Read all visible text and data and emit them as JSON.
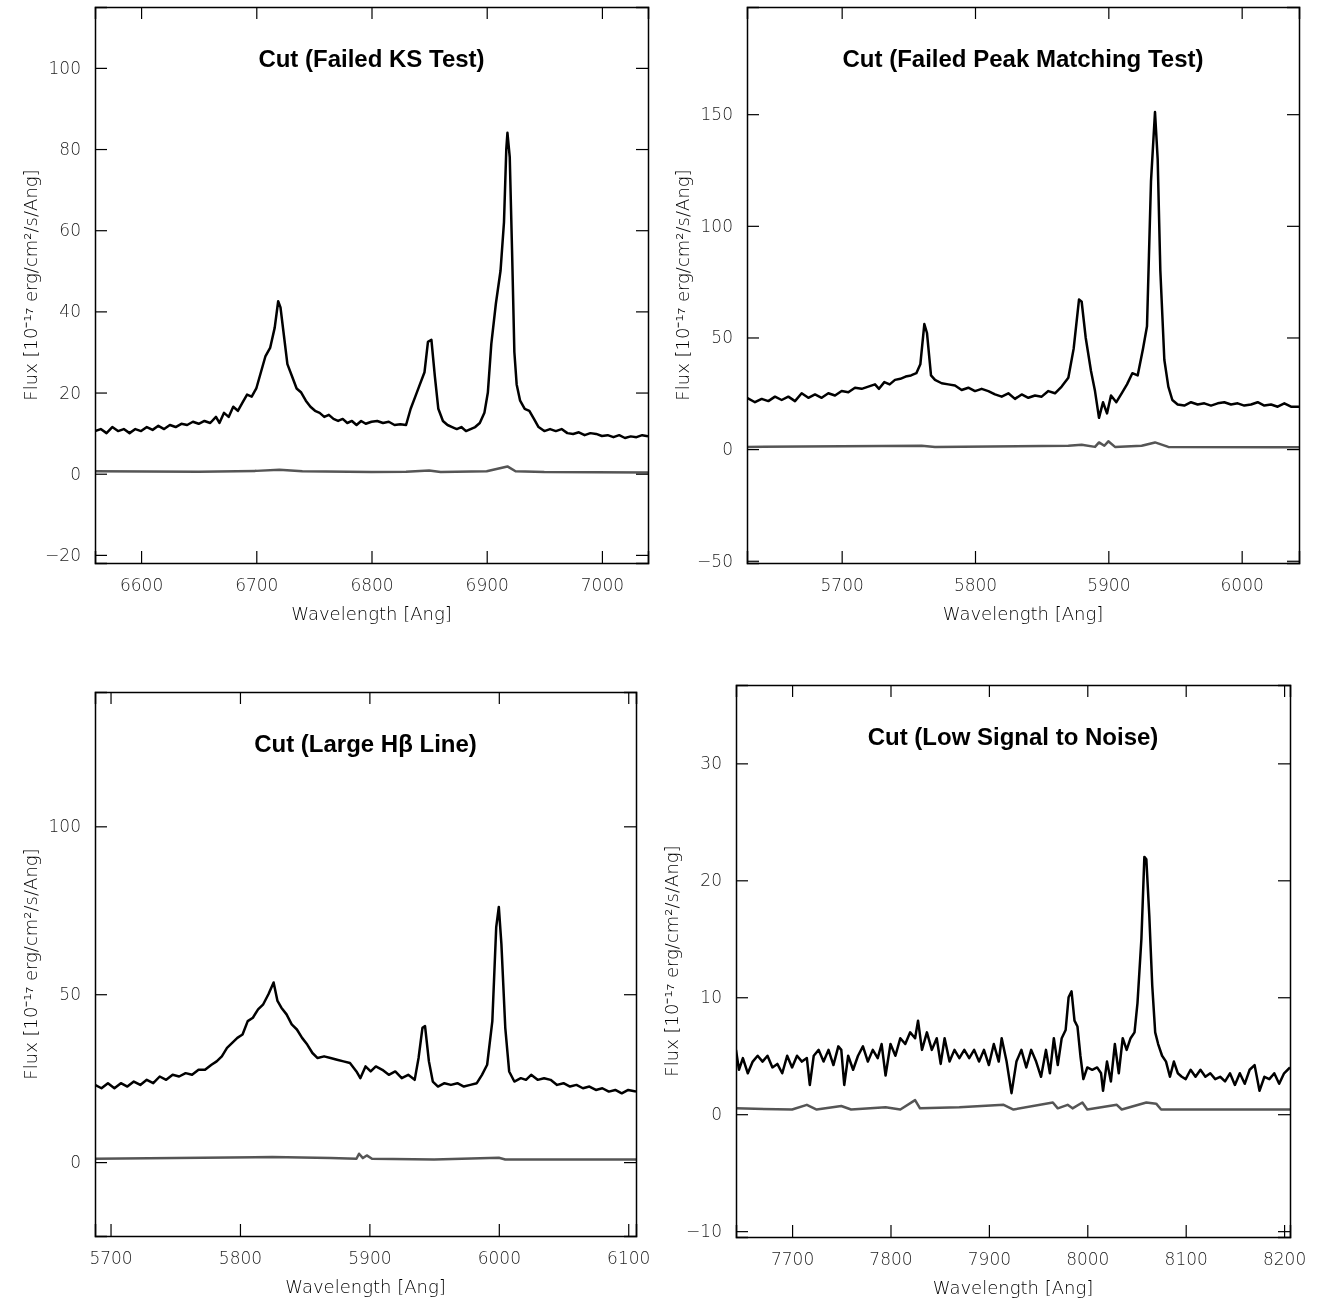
{
  "chart_data": [
    {
      "type": "line",
      "title": "Cut (Failed KS Test)",
      "xlabel": "Wavelength [Ang]",
      "ylabel": "Flux [10⁻¹⁷ erg/cm²/s/Ang]",
      "xlim": [
        6560,
        7040
      ],
      "ylim": [
        -22,
        115
      ],
      "xticks": [
        6600,
        6700,
        6800,
        6900,
        7000
      ],
      "yticks": [
        -20,
        0,
        20,
        40,
        60,
        80,
        100
      ],
      "line_style": "solid",
      "series": [
        {
          "color": "#000000",
          "x": [
            6560,
            6565,
            6570,
            6575,
            6580,
            6585,
            6590,
            6595,
            6600,
            6605,
            6610,
            6615,
            6620,
            6625,
            6630,
            6635,
            6640,
            6645,
            6650,
            6655,
            6660,
            6665,
            6668,
            6672,
            6676,
            6680,
            6684,
            6688,
            6692,
            6696,
            6700,
            6704,
            6708,
            6712,
            6716,
            6719,
            6721,
            6724,
            6727,
            6731,
            6735,
            6739,
            6743,
            6747,
            6751,
            6755,
            6759,
            6763,
            6767,
            6771,
            6775,
            6779,
            6783,
            6787,
            6791,
            6795,
            6800,
            6805,
            6810,
            6815,
            6820,
            6825,
            6830,
            6834,
            6838,
            6842,
            6846,
            6849,
            6852,
            6855,
            6858,
            6862,
            6866,
            6870,
            6874,
            6878,
            6882,
            6886,
            6890,
            6894,
            6898,
            6901,
            6904,
            6908,
            6912,
            6915,
            6917,
            6918,
            6920,
            6922,
            6924,
            6926,
            6929,
            6933,
            6937,
            6941,
            6945,
            6950,
            6955,
            6960,
            6965,
            6970,
            6975,
            6980,
            6985,
            6990,
            6995,
            7000,
            7005,
            7010,
            7015,
            7020,
            7025,
            7030,
            7035,
            7040
          ],
          "values": [
            10.5,
            11,
            10,
            11.5,
            10.5,
            11,
            10,
            11,
            10.5,
            11.5,
            10.8,
            11.8,
            11,
            12,
            11.5,
            12.3,
            12,
            12.8,
            12.3,
            13,
            12.5,
            14,
            12.5,
            15,
            14,
            16.5,
            15.5,
            17.5,
            19.5,
            19,
            21,
            25,
            29,
            31,
            36,
            42.5,
            41,
            34,
            27,
            24,
            21,
            20,
            18,
            16.5,
            15.5,
            15,
            14,
            14.5,
            13.5,
            13,
            13.5,
            12.5,
            13,
            12,
            13,
            12.3,
            12.8,
            13,
            12.5,
            12.8,
            12,
            12.2,
            12,
            16,
            19,
            22,
            25,
            32.5,
            33,
            24,
            16,
            13,
            12,
            11.5,
            11,
            11.5,
            10.5,
            11,
            11.5,
            12.5,
            15,
            20,
            32,
            42,
            50,
            62,
            80,
            84,
            78,
            55,
            30,
            22,
            18,
            16,
            15.5,
            13.5,
            11.5,
            10.5,
            11,
            10.5,
            11,
            10,
            9.8,
            10.2,
            9.5,
            10,
            9.8,
            9.3,
            9.5,
            9,
            9.5,
            8.8,
            9.2,
            9,
            9.5,
            9.2
          ]
        },
        {
          "color": "#555555",
          "x": [
            6560,
            6650,
            6700,
            6720,
            6740,
            6800,
            6830,
            6850,
            6860,
            6900,
            6918,
            6925,
            6950,
            7040
          ],
          "values": [
            0.6,
            0.5,
            0.7,
            1.0,
            0.6,
            0.4,
            0.5,
            0.8,
            0.4,
            0.6,
            1.8,
            0.6,
            0.4,
            0.3
          ]
        }
      ]
    },
    {
      "type": "line",
      "title": "Cut (Failed Peak Matching Test)",
      "xlabel": "Wavelength [Ang]",
      "ylabel": "Flux [10⁻¹⁷ erg/cm²/s/Ang]",
      "xlim": [
        5629,
        6043
      ],
      "ylim": [
        -51,
        198
      ],
      "xticks": [
        5700,
        5800,
        5900,
        6000
      ],
      "yticks": [
        -50,
        0,
        50,
        100,
        150
      ],
      "line_style": "solid",
      "series": [
        {
          "color": "#000000",
          "x": [
            5629,
            5635,
            5640,
            5645,
            5650,
            5655,
            5660,
            5665,
            5670,
            5675,
            5680,
            5685,
            5690,
            5695,
            5700,
            5705,
            5710,
            5715,
            5720,
            5725,
            5728,
            5732,
            5736,
            5740,
            5744,
            5748,
            5752,
            5756,
            5759,
            5762,
            5764,
            5767,
            5770,
            5775,
            5780,
            5785,
            5790,
            5795,
            5800,
            5805,
            5810,
            5815,
            5820,
            5825,
            5830,
            5835,
            5840,
            5845,
            5850,
            5855,
            5860,
            5865,
            5870,
            5874,
            5878,
            5880,
            5883,
            5887,
            5890,
            5893,
            5896,
            5899,
            5902,
            5906,
            5910,
            5914,
            5918,
            5922,
            5926,
            5929,
            5932,
            5935,
            5937,
            5939,
            5942,
            5945,
            5948,
            5952,
            5957,
            5962,
            5967,
            5972,
            5977,
            5982,
            5987,
            5992,
            5997,
            6002,
            6007,
            6012,
            6017,
            6022,
            6027,
            6032,
            6037,
            6043
          ],
          "values": [
            23,
            21,
            22.5,
            21.5,
            23.5,
            22,
            23.5,
            21.5,
            25,
            23,
            24.5,
            23,
            25,
            24,
            26,
            25.5,
            27.5,
            27,
            28,
            29,
            27,
            30,
            29,
            31,
            31.5,
            32.5,
            33,
            34,
            38,
            56,
            52,
            33,
            31,
            29.5,
            29,
            28.5,
            26.5,
            27.5,
            26,
            27,
            26,
            24.5,
            23.5,
            25,
            22.5,
            24.5,
            23,
            24,
            23.5,
            26,
            25,
            28,
            32,
            45,
            67,
            66,
            50,
            35,
            26,
            14,
            21,
            16,
            24,
            21,
            25,
            29,
            34,
            33,
            45,
            55,
            120,
            151,
            130,
            80,
            40,
            28,
            22,
            20,
            19.5,
            21,
            20,
            20.5,
            19.5,
            20.5,
            21,
            20,
            20.5,
            19.5,
            20,
            21,
            19.5,
            20,
            19,
            20.5,
            19,
            19
          ]
        },
        {
          "color": "#555555",
          "x": [
            5629,
            5760,
            5770,
            5870,
            5880,
            5890,
            5893,
            5897,
            5900,
            5905,
            5925,
            5935,
            5945,
            6043
          ],
          "values": [
            1,
            1.5,
            1,
            1.5,
            2,
            1,
            3,
            1.5,
            3.5,
            1,
            1.5,
            3,
            1,
            0.8
          ]
        }
      ]
    },
    {
      "type": "line",
      "title": "Cut (Large Hβ Line)",
      "xlabel": "Wavelength [Ang]",
      "ylabel": "Flux [10⁻¹⁷ erg/cm²/s/Ang]",
      "xlim": [
        5688,
        6106
      ],
      "ylim": [
        -22,
        140
      ],
      "xticks": [
        5700,
        5800,
        5900,
        6000,
        6100
      ],
      "yticks": [
        0,
        50,
        100
      ],
      "line_style": "solid",
      "series": [
        {
          "color": "#000000",
          "x": [
            5688,
            5693,
            5698,
            5703,
            5708,
            5713,
            5718,
            5723,
            5728,
            5733,
            5738,
            5743,
            5748,
            5753,
            5758,
            5763,
            5768,
            5773,
            5778,
            5782,
            5786,
            5790,
            5794,
            5798,
            5802,
            5806,
            5810,
            5814,
            5818,
            5822,
            5826,
            5829,
            5832,
            5836,
            5840,
            5844,
            5848,
            5852,
            5856,
            5860,
            5865,
            5870,
            5875,
            5880,
            5885,
            5890,
            5893,
            5897,
            5901,
            5905,
            5910,
            5915,
            5920,
            5925,
            5930,
            5935,
            5938,
            5941,
            5943,
            5946,
            5949,
            5953,
            5958,
            5963,
            5968,
            5973,
            5978,
            5983,
            5987,
            5991,
            5995,
            5998,
            6000,
            6002,
            6005,
            6008,
            6012,
            6017,
            6021,
            6025,
            6030,
            6035,
            6040,
            6045,
            6050,
            6055,
            6060,
            6065,
            6070,
            6075,
            6080,
            6085,
            6090,
            6095,
            6100,
            6106
          ],
          "values": [
            23,
            22,
            23.5,
            22,
            23.5,
            22.5,
            24,
            23,
            24.5,
            23.5,
            25.5,
            24.5,
            26,
            25.5,
            26.5,
            26,
            27.5,
            27.5,
            29,
            30,
            31.5,
            34,
            35.5,
            37,
            38,
            42,
            43,
            45.5,
            47,
            50,
            53.5,
            48,
            46,
            44,
            41,
            39.5,
            37,
            35,
            32.5,
            31,
            31.5,
            31,
            30.5,
            30,
            29.5,
            27,
            25,
            28.5,
            27,
            28.5,
            27.5,
            26,
            27,
            25,
            26,
            24.5,
            31,
            40,
            40.5,
            30,
            24,
            22.5,
            23.5,
            23,
            23.5,
            22.5,
            23,
            23.5,
            26,
            29,
            42,
            70,
            76,
            65,
            40,
            27,
            24,
            25,
            24.5,
            26,
            24.5,
            25,
            24.5,
            23,
            23.5,
            22.5,
            23,
            22,
            22.5,
            21.5,
            22,
            21,
            21.5,
            20.5,
            21.5,
            21
          ]
        },
        {
          "color": "#555555",
          "x": [
            5688,
            5825,
            5870,
            5890,
            5892,
            5895,
            5898,
            5902,
            5950,
            6000,
            6005,
            6106
          ],
          "values": [
            1,
            1.5,
            1.2,
            1,
            2.5,
            1.2,
            2,
            1,
            0.8,
            1.3,
            0.8,
            0.8
          ]
        }
      ]
    },
    {
      "type": "line",
      "title": "Cut (Low Signal to Noise)",
      "xlabel": "Wavelength [Ang]",
      "ylabel": "Flux [10⁻¹⁷ erg/cm²/s/Ang]",
      "xlim": [
        7643,
        8206
      ],
      "ylim": [
        -10.5,
        36.7
      ],
      "xticks": [
        7700,
        7800,
        7900,
        8000,
        8100,
        8200
      ],
      "yticks": [
        -10,
        0,
        10,
        20,
        30
      ],
      "line_style": "solid",
      "series": [
        {
          "color": "#000000",
          "x": [
            7643,
            7646,
            7650,
            7655,
            7660,
            7665,
            7670,
            7675,
            7680,
            7685,
            7690,
            7695,
            7700,
            7705,
            7710,
            7715,
            7718,
            7722,
            7727,
            7732,
            7737,
            7742,
            7747,
            7750,
            7753,
            7757,
            7762,
            7767,
            7772,
            7777,
            7782,
            7787,
            7791,
            7795,
            7800,
            7805,
            7810,
            7815,
            7820,
            7825,
            7828,
            7832,
            7837,
            7842,
            7847,
            7851,
            7855,
            7860,
            7865,
            7870,
            7875,
            7880,
            7885,
            7890,
            7895,
            7900,
            7905,
            7910,
            7913,
            7918,
            7923,
            7928,
            7933,
            7938,
            7943,
            7948,
            7953,
            7958,
            7962,
            7966,
            7970,
            7974,
            7978,
            7981,
            7984,
            7987,
            7990,
            7993,
            7996,
            8000,
            8005,
            8010,
            8014,
            8016,
            8020,
            8024,
            8028,
            8032,
            8036,
            8040,
            8044,
            8048,
            8051,
            8055,
            8058,
            8060,
            8063,
            8066,
            8069,
            8072,
            8076,
            8080,
            8084,
            8088,
            8092,
            8096,
            8100,
            8105,
            8110,
            8115,
            8120,
            8125,
            8130,
            8135,
            8140,
            8145,
            8150,
            8155,
            8160,
            8165,
            8170,
            8175,
            8180,
            8185,
            8190,
            8195,
            8200,
            8206
          ],
          "values": [
            5.5,
            3.8,
            4.8,
            3.5,
            4.5,
            5,
            4.5,
            5,
            4,
            4.3,
            3.5,
            5,
            4,
            5,
            4.5,
            4.8,
            2.5,
            5,
            5.5,
            4.5,
            5.5,
            4.2,
            5.8,
            5.5,
            2.5,
            5,
            3.8,
            5,
            5.8,
            4.5,
            5.5,
            4.8,
            6,
            3.3,
            6,
            5,
            6.5,
            6,
            7,
            6.5,
            8,
            5.5,
            7,
            5.5,
            6.5,
            4.3,
            6.5,
            4.5,
            5.5,
            4.8,
            5.5,
            4.8,
            5.5,
            4.5,
            5.5,
            4.2,
            6,
            4.5,
            6.5,
            4.5,
            1.8,
            4.5,
            5.5,
            4,
            5.5,
            4.5,
            3.2,
            5.5,
            3.5,
            6.5,
            4.2,
            6.5,
            7.2,
            10,
            10.5,
            8,
            7.5,
            5,
            3,
            4,
            3.8,
            4,
            3.5,
            2,
            4.5,
            2.8,
            6,
            3.5,
            6.5,
            5.5,
            6.5,
            7,
            9.5,
            15,
            22,
            21.8,
            17,
            11,
            7,
            6,
            5,
            4.5,
            3.2,
            4.5,
            3.5,
            3.2,
            3,
            3.8,
            3.2,
            3.8,
            3.2,
            3.5,
            3,
            3.2,
            2.8,
            3.5,
            2.5,
            3.5,
            2.6,
            3.8,
            4.2,
            2,
            3.2,
            3,
            3.5,
            2.6,
            3.5,
            4
          ]
        },
        {
          "color": "#555555",
          "x": [
            7643,
            7700,
            7715,
            7725,
            7750,
            7760,
            7795,
            7810,
            7825,
            7830,
            7870,
            7915,
            7925,
            7965,
            7970,
            7980,
            7985,
            7995,
            8000,
            8030,
            8035,
            8060,
            8070,
            8075,
            8206
          ],
          "values": [
            0.5,
            0.4,
            0.8,
            0.4,
            0.7,
            0.4,
            0.6,
            0.4,
            1.2,
            0.5,
            0.6,
            0.8,
            0.4,
            1,
            0.5,
            0.8,
            0.5,
            1,
            0.4,
            0.8,
            0.4,
            1,
            0.9,
            0.4,
            0.4
          ]
        }
      ]
    }
  ]
}
